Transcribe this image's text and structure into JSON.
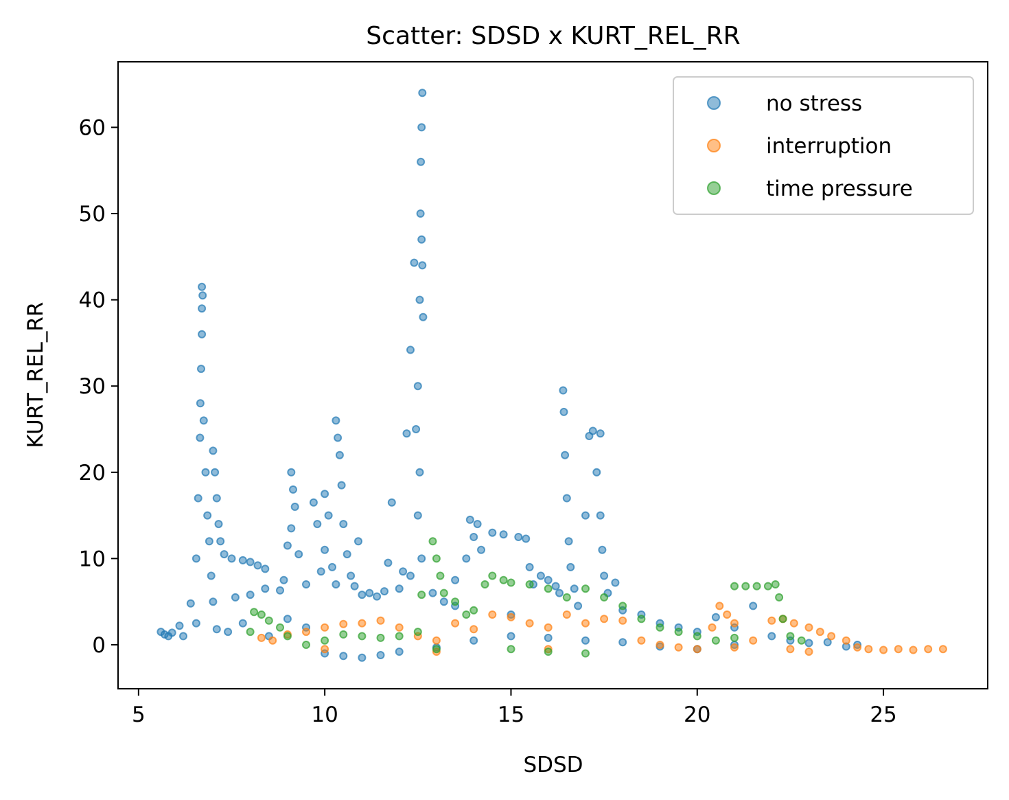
{
  "chart_data": {
    "type": "scatter",
    "title": "Scatter: SDSD x KURT_REL_RR",
    "xlabel": "SDSD",
    "ylabel": "KURT_REL_RR",
    "xlim": [
      4.45,
      27.8
    ],
    "ylim": [
      -5.1,
      67.6
    ],
    "xticks": [
      5,
      10,
      15,
      20,
      25
    ],
    "yticks": [
      0,
      10,
      20,
      30,
      40,
      50,
      60
    ],
    "legend_position": "top-right",
    "grid": false,
    "colors": {
      "no stress": "#1f77b4",
      "interruption": "#ff7f0e",
      "time pressure": "#2ca02c"
    },
    "series": [
      {
        "name": "no stress",
        "color": "#1f77b4",
        "points": [
          [
            5.6,
            1.5
          ],
          [
            5.7,
            1.2
          ],
          [
            5.8,
            1.0
          ],
          [
            5.9,
            1.4
          ],
          [
            6.1,
            2.2
          ],
          [
            6.2,
            1.0
          ],
          [
            6.4,
            4.8
          ],
          [
            6.55,
            2.5
          ],
          [
            6.55,
            10.0
          ],
          [
            6.6,
            17.0
          ],
          [
            6.65,
            24.0
          ],
          [
            6.66,
            28.0
          ],
          [
            6.68,
            32.0
          ],
          [
            6.7,
            36.0
          ],
          [
            6.7,
            39.0
          ],
          [
            6.7,
            41.5
          ],
          [
            6.72,
            40.5
          ],
          [
            6.75,
            26.0
          ],
          [
            6.8,
            20.0
          ],
          [
            6.85,
            15.0
          ],
          [
            6.9,
            12.0
          ],
          [
            6.95,
            8.0
          ],
          [
            7.0,
            5.0
          ],
          [
            7.0,
            22.5
          ],
          [
            7.05,
            20.0
          ],
          [
            7.1,
            17.0
          ],
          [
            7.1,
            1.8
          ],
          [
            7.15,
            14.0
          ],
          [
            7.2,
            12.0
          ],
          [
            7.3,
            10.5
          ],
          [
            7.5,
            10.0
          ],
          [
            7.8,
            9.8
          ],
          [
            8.0,
            9.6
          ],
          [
            8.2,
            9.2
          ],
          [
            8.4,
            8.8
          ],
          [
            7.4,
            1.5
          ],
          [
            7.6,
            5.5
          ],
          [
            7.8,
            2.5
          ],
          [
            8.0,
            5.8
          ],
          [
            8.4,
            6.5
          ],
          [
            8.8,
            6.3
          ],
          [
            8.9,
            7.5
          ],
          [
            9.0,
            11.5
          ],
          [
            9.1,
            13.5
          ],
          [
            9.1,
            20.0
          ],
          [
            9.15,
            18.0
          ],
          [
            9.2,
            16.0
          ],
          [
            9.3,
            10.5
          ],
          [
            9.5,
            7.0
          ],
          [
            9.7,
            16.5
          ],
          [
            9.8,
            14.0
          ],
          [
            9.9,
            8.5
          ],
          [
            10.0,
            11.0
          ],
          [
            10.0,
            17.5
          ],
          [
            10.1,
            15.0
          ],
          [
            10.2,
            9.0
          ],
          [
            10.3,
            7.0
          ],
          [
            10.3,
            26.0
          ],
          [
            10.35,
            24.0
          ],
          [
            10.4,
            22.0
          ],
          [
            10.45,
            18.5
          ],
          [
            10.5,
            14.0
          ],
          [
            10.6,
            10.5
          ],
          [
            10.7,
            8.0
          ],
          [
            10.8,
            6.8
          ],
          [
            10.9,
            12.0
          ],
          [
            11.0,
            5.8
          ],
          [
            11.2,
            6.0
          ],
          [
            11.4,
            5.6
          ],
          [
            11.6,
            6.2
          ],
          [
            11.7,
            9.5
          ],
          [
            11.8,
            16.5
          ],
          [
            12.0,
            6.5
          ],
          [
            12.1,
            8.5
          ],
          [
            12.3,
            8.0
          ],
          [
            12.2,
            24.5
          ],
          [
            12.3,
            34.2
          ],
          [
            12.4,
            44.3
          ],
          [
            12.45,
            25.0
          ],
          [
            12.5,
            30.0
          ],
          [
            12.55,
            40.0
          ],
          [
            12.57,
            50.0
          ],
          [
            12.58,
            56.0
          ],
          [
            12.6,
            60.0
          ],
          [
            12.62,
            64.0
          ],
          [
            12.6,
            47.0
          ],
          [
            12.62,
            44.0
          ],
          [
            12.64,
            38.0
          ],
          [
            12.5,
            15.0
          ],
          [
            12.55,
            20.0
          ],
          [
            12.6,
            10.0
          ],
          [
            12.9,
            6.0
          ],
          [
            13.2,
            5.0
          ],
          [
            13.5,
            4.5
          ],
          [
            13.8,
            10.0
          ],
          [
            13.9,
            14.5
          ],
          [
            14.0,
            12.5
          ],
          [
            14.1,
            14.0
          ],
          [
            14.2,
            11.0
          ],
          [
            14.5,
            13.0
          ],
          [
            14.8,
            12.8
          ],
          [
            15.2,
            12.5
          ],
          [
            15.4,
            12.3
          ],
          [
            15.5,
            9.0
          ],
          [
            15.6,
            7.0
          ],
          [
            15.8,
            8.0
          ],
          [
            16.0,
            7.5
          ],
          [
            16.2,
            6.8
          ],
          [
            16.3,
            6.0
          ],
          [
            16.4,
            29.5
          ],
          [
            16.42,
            27.0
          ],
          [
            16.45,
            22.0
          ],
          [
            16.5,
            17.0
          ],
          [
            16.55,
            12.0
          ],
          [
            16.6,
            9.0
          ],
          [
            16.7,
            6.5
          ],
          [
            16.8,
            4.5
          ],
          [
            17.0,
            15.0
          ],
          [
            17.1,
            24.2
          ],
          [
            17.2,
            24.8
          ],
          [
            17.3,
            20.0
          ],
          [
            17.4,
            15.0
          ],
          [
            17.4,
            24.5
          ],
          [
            17.45,
            11.0
          ],
          [
            17.5,
            8.0
          ],
          [
            17.6,
            6.0
          ],
          [
            17.8,
            7.2
          ],
          [
            18.0,
            4.0
          ],
          [
            18.5,
            3.5
          ],
          [
            19.0,
            2.5
          ],
          [
            19.5,
            2.0
          ],
          [
            20.0,
            1.5
          ],
          [
            20.5,
            3.2
          ],
          [
            21.0,
            2.0
          ],
          [
            21.5,
            4.5
          ],
          [
            22.0,
            1.0
          ],
          [
            22.5,
            0.5
          ],
          [
            23.0,
            0.2
          ],
          [
            23.5,
            0.3
          ],
          [
            24.0,
            -0.2
          ],
          [
            24.3,
            0.0
          ],
          [
            9.0,
            3.0
          ],
          [
            9.5,
            2.0
          ],
          [
            10.0,
            -1.0
          ],
          [
            10.5,
            -1.3
          ],
          [
            11.0,
            -1.5
          ],
          [
            11.5,
            -1.2
          ],
          [
            12.0,
            -0.8
          ],
          [
            13.0,
            -0.3
          ],
          [
            14.0,
            0.5
          ],
          [
            15.0,
            1.0
          ],
          [
            16.0,
            0.8
          ],
          [
            17.0,
            0.5
          ],
          [
            18.0,
            0.3
          ],
          [
            19.0,
            -0.2
          ],
          [
            20.0,
            -0.5
          ],
          [
            21.0,
            0.0
          ],
          [
            8.5,
            1.0
          ],
          [
            13.5,
            7.5
          ],
          [
            15.0,
            3.5
          ]
        ]
      },
      {
        "name": "interruption",
        "color": "#ff7f0e",
        "points": [
          [
            8.3,
            0.8
          ],
          [
            8.6,
            0.5
          ],
          [
            9.0,
            1.2
          ],
          [
            9.5,
            1.5
          ],
          [
            10.0,
            2.0
          ],
          [
            10.5,
            2.4
          ],
          [
            11.0,
            2.5
          ],
          [
            11.5,
            2.8
          ],
          [
            12.0,
            2.0
          ],
          [
            12.5,
            1.0
          ],
          [
            13.0,
            0.5
          ],
          [
            13.5,
            2.5
          ],
          [
            14.0,
            1.8
          ],
          [
            14.5,
            3.5
          ],
          [
            15.0,
            3.2
          ],
          [
            15.5,
            2.5
          ],
          [
            16.0,
            2.0
          ],
          [
            16.5,
            3.5
          ],
          [
            17.0,
            2.5
          ],
          [
            17.5,
            3.0
          ],
          [
            18.0,
            2.8
          ],
          [
            18.5,
            0.5
          ],
          [
            19.0,
            0.0
          ],
          [
            19.5,
            -0.3
          ],
          [
            20.0,
            -0.5
          ],
          [
            20.4,
            2.0
          ],
          [
            20.6,
            4.5
          ],
          [
            20.8,
            3.5
          ],
          [
            21.0,
            2.5
          ],
          [
            21.5,
            0.5
          ],
          [
            22.0,
            2.8
          ],
          [
            22.3,
            3.0
          ],
          [
            22.6,
            2.5
          ],
          [
            23.0,
            2.0
          ],
          [
            23.3,
            1.5
          ],
          [
            23.6,
            1.0
          ],
          [
            24.0,
            0.5
          ],
          [
            24.3,
            -0.3
          ],
          [
            24.6,
            -0.5
          ],
          [
            25.0,
            -0.6
          ],
          [
            25.4,
            -0.5
          ],
          [
            25.8,
            -0.6
          ],
          [
            26.2,
            -0.5
          ],
          [
            26.6,
            -0.5
          ],
          [
            22.5,
            -0.5
          ],
          [
            23.0,
            -0.8
          ],
          [
            21.0,
            -0.3
          ],
          [
            16.0,
            -0.5
          ],
          [
            13.0,
            -0.8
          ],
          [
            10.0,
            -0.5
          ]
        ]
      },
      {
        "name": "time pressure",
        "color": "#2ca02c",
        "points": [
          [
            8.0,
            1.5
          ],
          [
            8.1,
            3.8
          ],
          [
            8.3,
            3.5
          ],
          [
            8.5,
            2.8
          ],
          [
            8.8,
            2.0
          ],
          [
            9.0,
            1.0
          ],
          [
            9.5,
            0.0
          ],
          [
            10.0,
            0.5
          ],
          [
            10.5,
            1.2
          ],
          [
            11.0,
            1.0
          ],
          [
            11.5,
            0.8
          ],
          [
            12.0,
            1.0
          ],
          [
            12.5,
            1.5
          ],
          [
            12.6,
            5.8
          ],
          [
            12.9,
            12.0
          ],
          [
            13.0,
            10.0
          ],
          [
            13.1,
            8.0
          ],
          [
            13.2,
            6.0
          ],
          [
            13.5,
            5.0
          ],
          [
            13.8,
            3.5
          ],
          [
            14.0,
            4.0
          ],
          [
            14.3,
            7.0
          ],
          [
            14.5,
            8.0
          ],
          [
            14.8,
            7.5
          ],
          [
            15.0,
            7.2
          ],
          [
            15.5,
            7.0
          ],
          [
            16.0,
            6.5
          ],
          [
            16.5,
            5.5
          ],
          [
            17.0,
            6.5
          ],
          [
            17.5,
            5.5
          ],
          [
            18.0,
            4.5
          ],
          [
            18.5,
            3.0
          ],
          [
            19.0,
            2.0
          ],
          [
            19.5,
            1.5
          ],
          [
            20.0,
            1.0
          ],
          [
            20.5,
            0.5
          ],
          [
            21.0,
            0.8
          ],
          [
            21.0,
            6.8
          ],
          [
            21.3,
            6.8
          ],
          [
            21.6,
            6.8
          ],
          [
            21.9,
            6.8
          ],
          [
            22.1,
            7.0
          ],
          [
            22.2,
            5.5
          ],
          [
            22.3,
            3.0
          ],
          [
            22.5,
            1.0
          ],
          [
            22.8,
            0.5
          ],
          [
            15.0,
            -0.5
          ],
          [
            16.0,
            -0.8
          ],
          [
            17.0,
            -1.0
          ],
          [
            13.0,
            -0.5
          ]
        ]
      }
    ]
  }
}
